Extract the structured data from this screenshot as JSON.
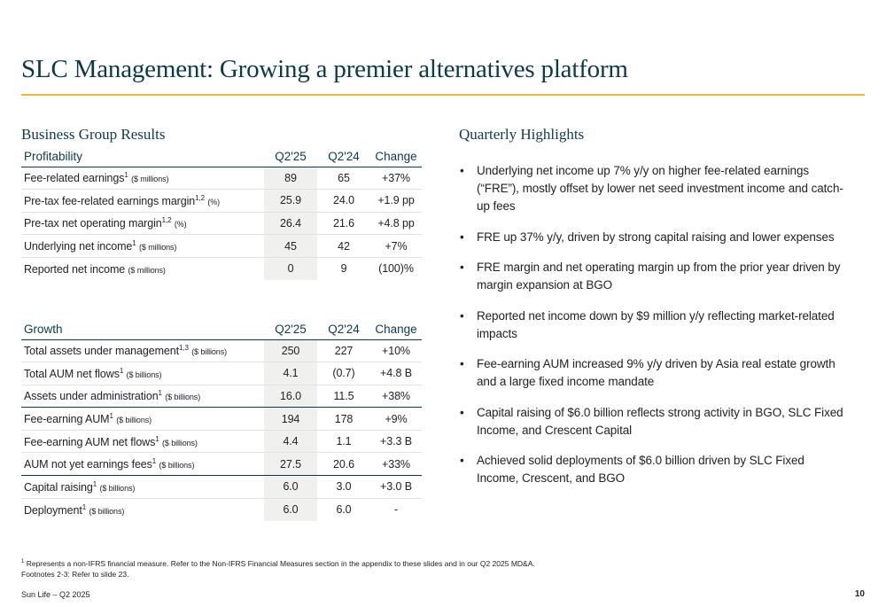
{
  "title": "SLC Management: Growing a premier alternatives platform",
  "left_heading": "Business Group Results",
  "right_heading": "Quarterly Highlights",
  "colors": {
    "title": "#0d3a4a",
    "rule": "#e8b93a",
    "shaded_column": "#f0f0ee"
  },
  "profitability": {
    "header": {
      "label": "Profitability",
      "cur": "Q2'25",
      "prev": "Q2'24",
      "chg": "Change"
    },
    "rows": [
      {
        "label": "Fee-related earnings",
        "sup": "1",
        "unit": "($ millions)",
        "cur": "89",
        "prev": "65",
        "chg": "+37%"
      },
      {
        "label": "Pre-tax fee-related earnings margin",
        "sup": "1,2",
        "unit": "(%)",
        "cur": "25.9",
        "prev": "24.0",
        "chg": "+1.9 pp"
      },
      {
        "label": "Pre-tax net operating margin",
        "sup": "1,2",
        "unit": "(%)",
        "cur": "26.4",
        "prev": "21.6",
        "chg": "+4.8 pp"
      },
      {
        "label": "Underlying net income",
        "sup": "1",
        "unit": "($ millions)",
        "cur": "45",
        "prev": "42",
        "chg": "+7%"
      },
      {
        "label": "Reported net income",
        "sup": "",
        "unit": "($ millions)",
        "cur": "0",
        "prev": "9",
        "chg": "(100)%"
      }
    ]
  },
  "growth": {
    "header": {
      "label": "Growth",
      "cur": "Q2'25",
      "prev": "Q2'24",
      "chg": "Change"
    },
    "rows": [
      {
        "label": "Total assets under management",
        "sup": "1,3",
        "unit": "($ billions)",
        "cur": "250",
        "prev": "227",
        "chg": "+10%"
      },
      {
        "label": "Total AUM net flows",
        "sup": "1",
        "unit": "($ billions)",
        "cur": "4.1",
        "prev": "(0.7)",
        "chg": "+4.8 B"
      },
      {
        "label": "Assets under administration",
        "sup": "1",
        "unit": "($ billions)",
        "cur": "16.0",
        "prev": "11.5",
        "chg": "+38%"
      },
      {
        "label": "Fee-earning AUM",
        "sup": "1",
        "unit": "($ billions)",
        "cur": "194",
        "prev": "178",
        "chg": "+9%"
      },
      {
        "label": "Fee-earning AUM net flows",
        "sup": "1",
        "unit": "($ billions)",
        "cur": "4.4",
        "prev": "1.1",
        "chg": "+3.3 B"
      },
      {
        "label": "AUM not yet earnings fees",
        "sup": "1",
        "unit": "($ billions)",
        "cur": "27.5",
        "prev": "20.6",
        "chg": "+33%"
      },
      {
        "label": "Capital raising",
        "sup": "1",
        "unit": "($ billions)",
        "cur": "6.0",
        "prev": "3.0",
        "chg": "+3.0 B"
      },
      {
        "label": "Deployment",
        "sup": "1",
        "unit": "($ billions)",
        "cur": "6.0",
        "prev": "6.0",
        "chg": "-"
      }
    ]
  },
  "highlights": [
    "Underlying net income up 7% y/y on higher fee-related earnings (“FRE”), mostly offset by lower net seed investment income and catch-up fees",
    "FRE up 37% y/y, driven by strong capital raising and lower expenses",
    "FRE margin and net operating margin up from the prior year driven by margin expansion at BGO",
    "Reported net income down by $9 million y/y reflecting market-related impacts",
    "Fee-earning AUM increased 9% y/y driven by Asia real estate growth and a large fixed income mandate",
    "Capital raising of $6.0 billion reflects strong activity in BGO, SLC Fixed Income, and Crescent Capital",
    "Achieved solid deployments of $6.0 billion driven by SLC Fixed Income, Crescent, and BGO"
  ],
  "footnotes": {
    "line1_sup": "1",
    "line1": " Represents a non-IFRS financial measure. Refer to the Non-IFRS Financial Measures section in the appendix to these slides and in our Q2 2025 MD&A.",
    "line2": "Footnotes 2-3: Refer to slide 23."
  },
  "footer": {
    "left": "Sun Life – Q2 2025",
    "page": "10"
  }
}
